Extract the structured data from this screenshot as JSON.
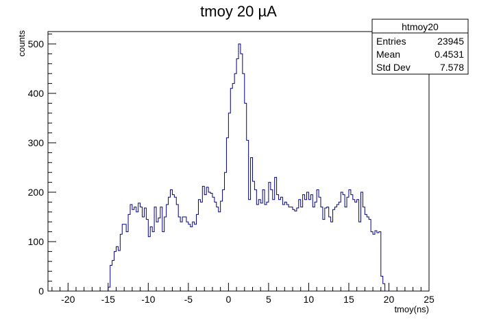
{
  "chart_data": {
    "type": "histogram",
    "title": "tmoy 20 µA",
    "xlabel": "tmoy(ns)",
    "ylabel": "counts",
    "xlim": [
      -22.5,
      25
    ],
    "ylim": [
      0,
      525
    ],
    "x_ticks": [
      -20,
      -15,
      -10,
      -5,
      0,
      5,
      10,
      15,
      20,
      25
    ],
    "y_ticks": [
      0,
      100,
      200,
      300,
      400,
      500
    ],
    "grid": false,
    "line_color": "#000080",
    "stats_box": {
      "name": "htmoy20",
      "rows": [
        {
          "label": "Entries",
          "value": "23945"
        },
        {
          "label": "Mean",
          "value": "0.4531"
        },
        {
          "label": "Std Dev",
          "value": "7.578"
        }
      ]
    },
    "bin_width": 0.25,
    "bin_start": -15,
    "counts": [
      8,
      52,
      62,
      80,
      90,
      82,
      115,
      135,
      135,
      120,
      155,
      175,
      165,
      170,
      160,
      178,
      170,
      150,
      168,
      145,
      110,
      130,
      120,
      170,
      140,
      148,
      170,
      120,
      150,
      175,
      190,
      205,
      195,
      190,
      175,
      150,
      140,
      150,
      150,
      140,
      135,
      130,
      140,
      135,
      155,
      185,
      180,
      212,
      195,
      210,
      200,
      198,
      190,
      180,
      170,
      160,
      182,
      205,
      240,
      310,
      360,
      410,
      420,
      440,
      470,
      500,
      480,
      440,
      380,
      305,
      185,
      270,
      222,
      205,
      175,
      185,
      178,
      205,
      175,
      180,
      220,
      205,
      185,
      230,
      195,
      185,
      190,
      175,
      180,
      175,
      170,
      170,
      165,
      162,
      168,
      185,
      170,
      195,
      185,
      200,
      185,
      195,
      170,
      180,
      205,
      190,
      170,
      145,
      168,
      170,
      150,
      140,
      165,
      170,
      175,
      180,
      200,
      195,
      170,
      190,
      205,
      195,
      185,
      180,
      185,
      140,
      200,
      170,
      155,
      150,
      145,
      120,
      115,
      122,
      118,
      120,
      30,
      15,
      0
    ]
  }
}
